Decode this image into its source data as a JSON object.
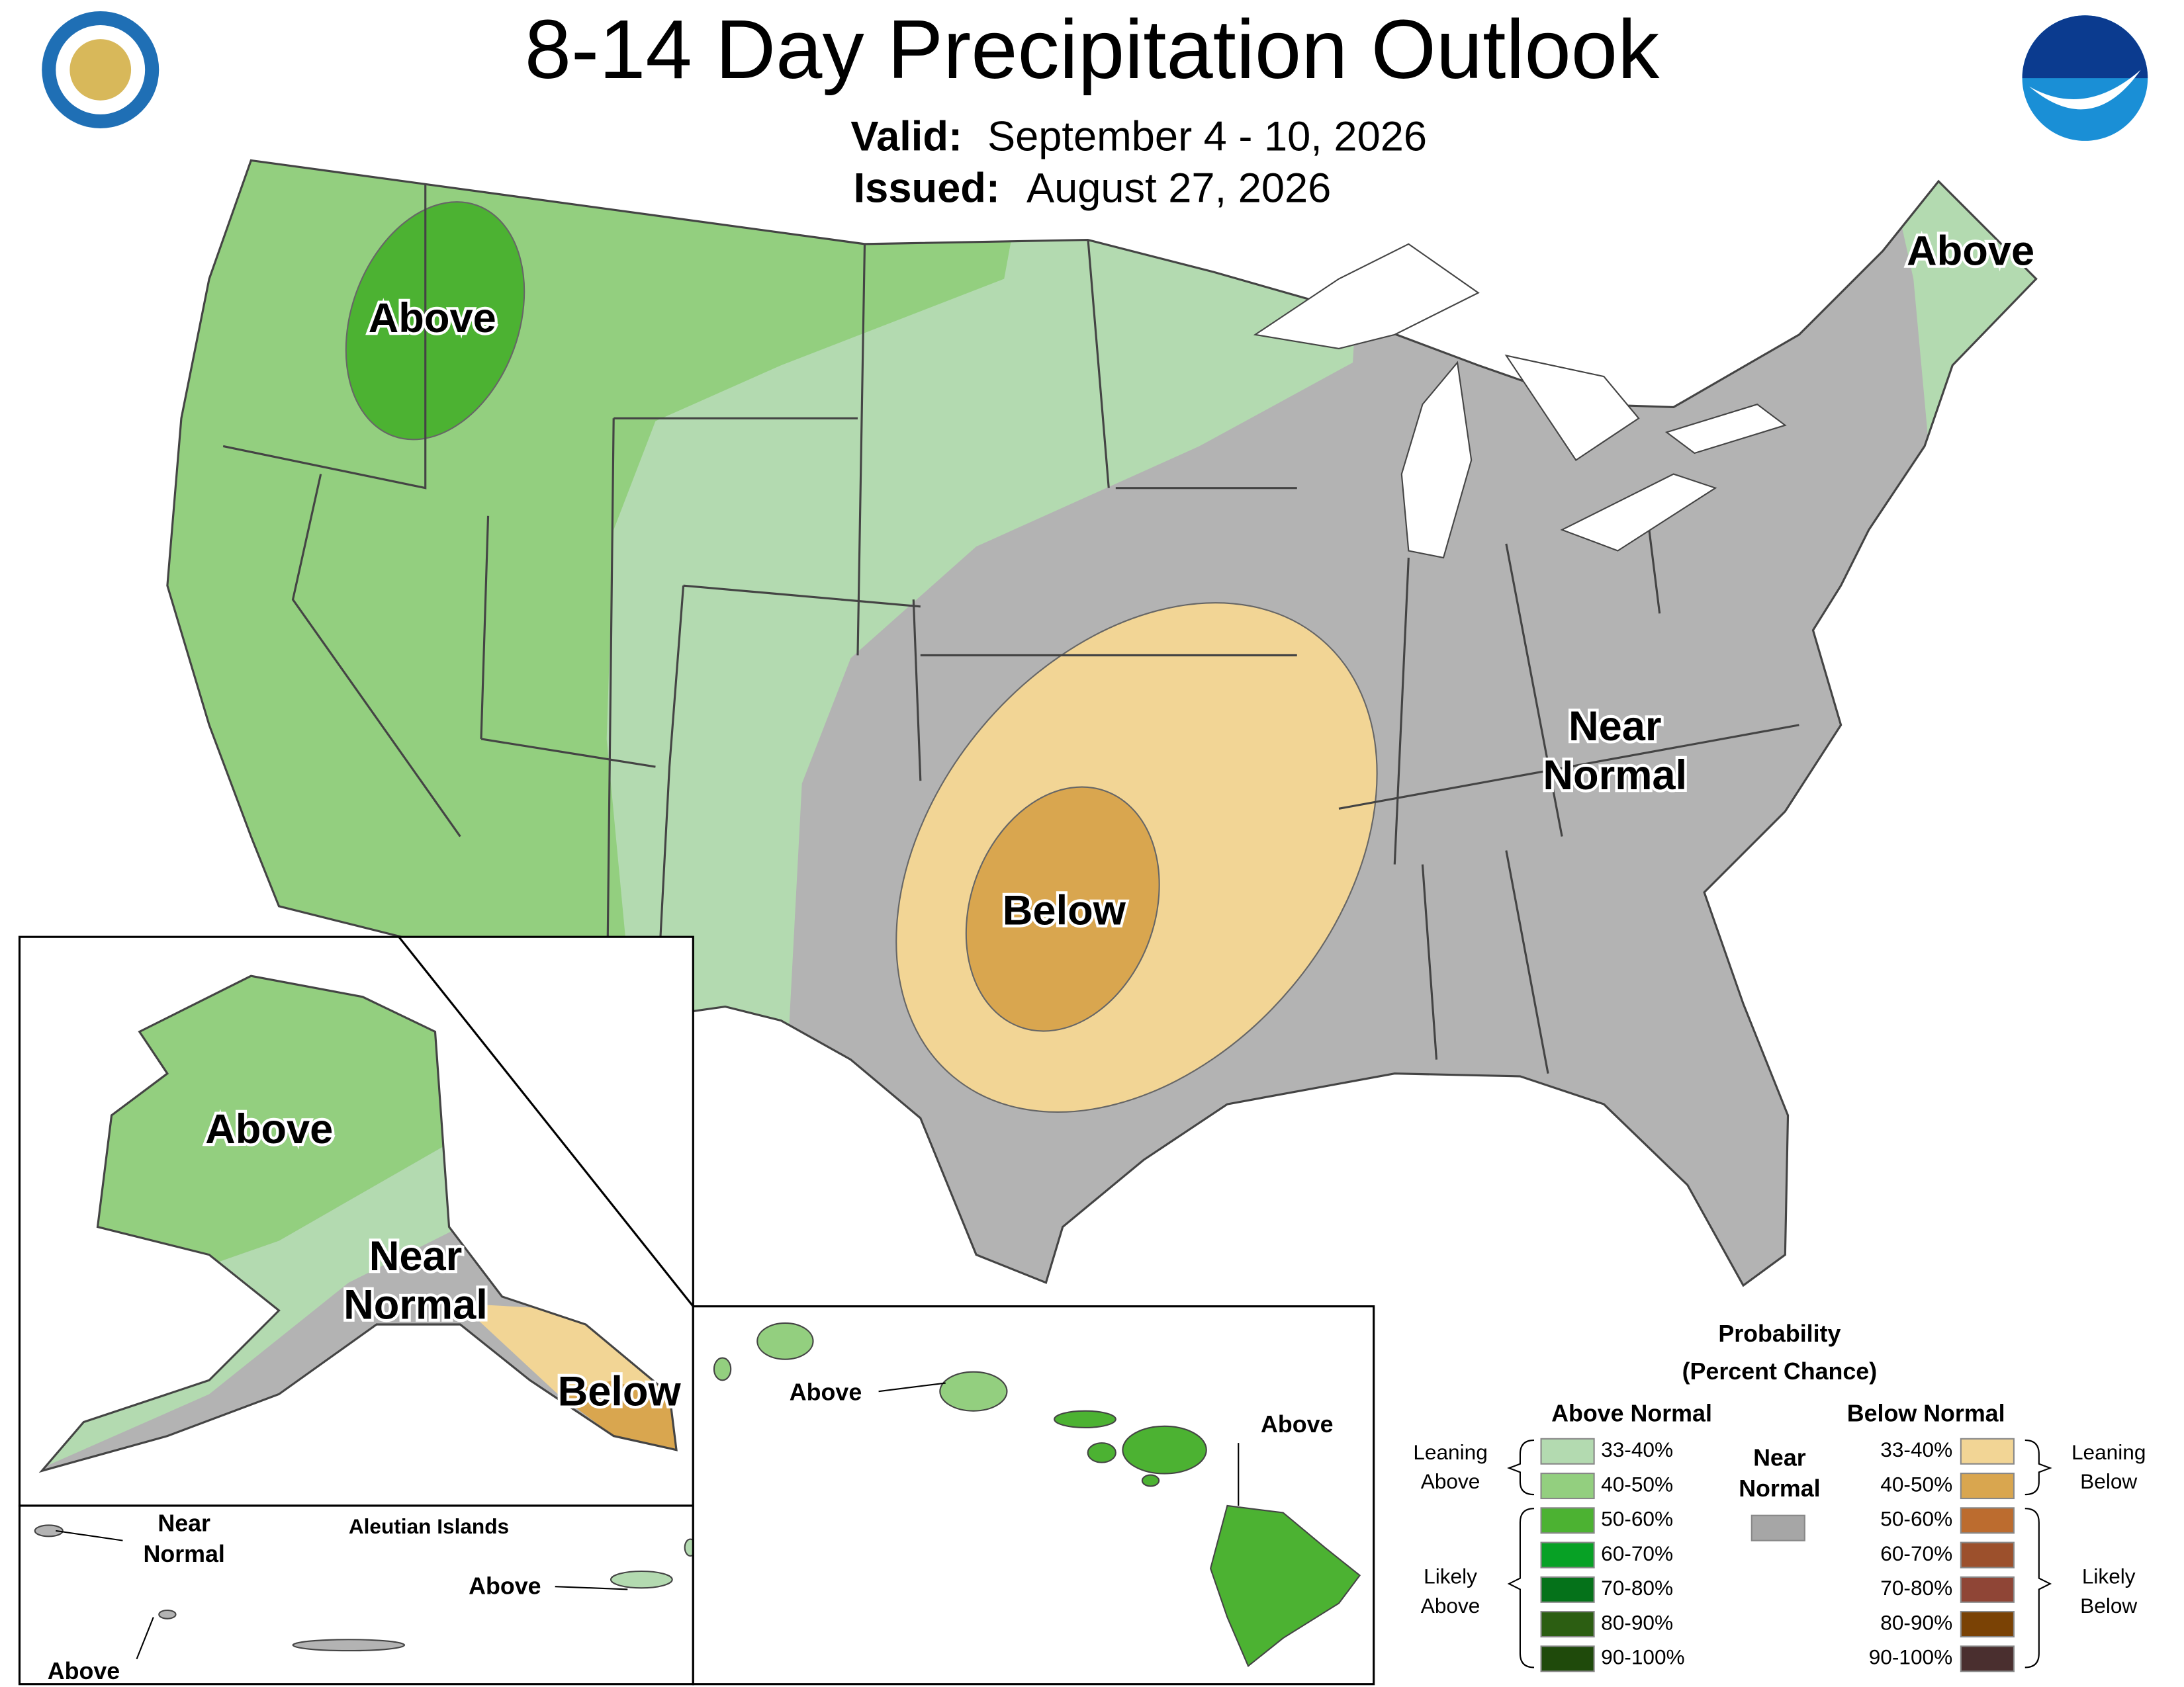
{
  "header": {
    "title": "8-14 Day Precipitation Outlook",
    "valid_label": "Valid:",
    "valid_dates": "September 4 - 10, 2026",
    "issued_label": "Issued:",
    "issued_date": "August 27, 2026"
  },
  "map_labels": [
    {
      "lines": [
        "Above"
      ]
    },
    {
      "lines": [
        "Above"
      ]
    },
    {
      "lines": [
        "Near",
        "Normal"
      ]
    },
    {
      "lines": [
        "Below"
      ]
    },
    {
      "lines": [
        "Above"
      ]
    },
    {
      "lines": [
        "Near",
        "Normal"
      ]
    },
    {
      "lines": [
        "Below"
      ]
    },
    {
      "lines": [
        "Above"
      ]
    },
    {
      "lines": [
        "Above"
      ]
    },
    {
      "lines": [
        "Near",
        "Normal"
      ]
    },
    {
      "lines": [
        "Above"
      ]
    },
    {
      "lines": [
        "Above"
      ]
    }
  ],
  "inset_captions": {
    "aleutian": "Aleutian Islands"
  },
  "legend": {
    "title": [
      "Probability",
      "(Percent Chance)"
    ],
    "above_header": "Above Normal",
    "below_header": "Below Normal",
    "near_header": [
      "Near",
      "Normal"
    ],
    "near_color": "#a6a6a6",
    "above": [
      {
        "label": "33-40%",
        "color": "#b3dab0"
      },
      {
        "label": "40-50%",
        "color": "#93cf7f"
      },
      {
        "label": "50-60%",
        "color": "#4cb232"
      },
      {
        "label": "60-70%",
        "color": "#07a125"
      },
      {
        "label": "70-80%",
        "color": "#05721a"
      },
      {
        "label": "80-90%",
        "color": "#2c5e12"
      },
      {
        "label": "90-100%",
        "color": "#1f4a0b"
      }
    ],
    "below": [
      {
        "label": "33-40%",
        "color": "#f2d595"
      },
      {
        "label": "40-50%",
        "color": "#d9a64f"
      },
      {
        "label": "50-60%",
        "color": "#bc6c2f"
      },
      {
        "label": "60-70%",
        "color": "#9c502c"
      },
      {
        "label": "70-80%",
        "color": "#8f4536"
      },
      {
        "label": "80-90%",
        "color": "#7a4205"
      },
      {
        "label": "90-100%",
        "color": "#4a2f2f"
      }
    ],
    "brackets": {
      "leaning_above": [
        "Leaning",
        "Above"
      ],
      "likely_above": [
        "Likely",
        "Above"
      ],
      "leaning_below": [
        "Leaning",
        "Below"
      ],
      "likely_below": [
        "Likely",
        "Below"
      ]
    }
  }
}
